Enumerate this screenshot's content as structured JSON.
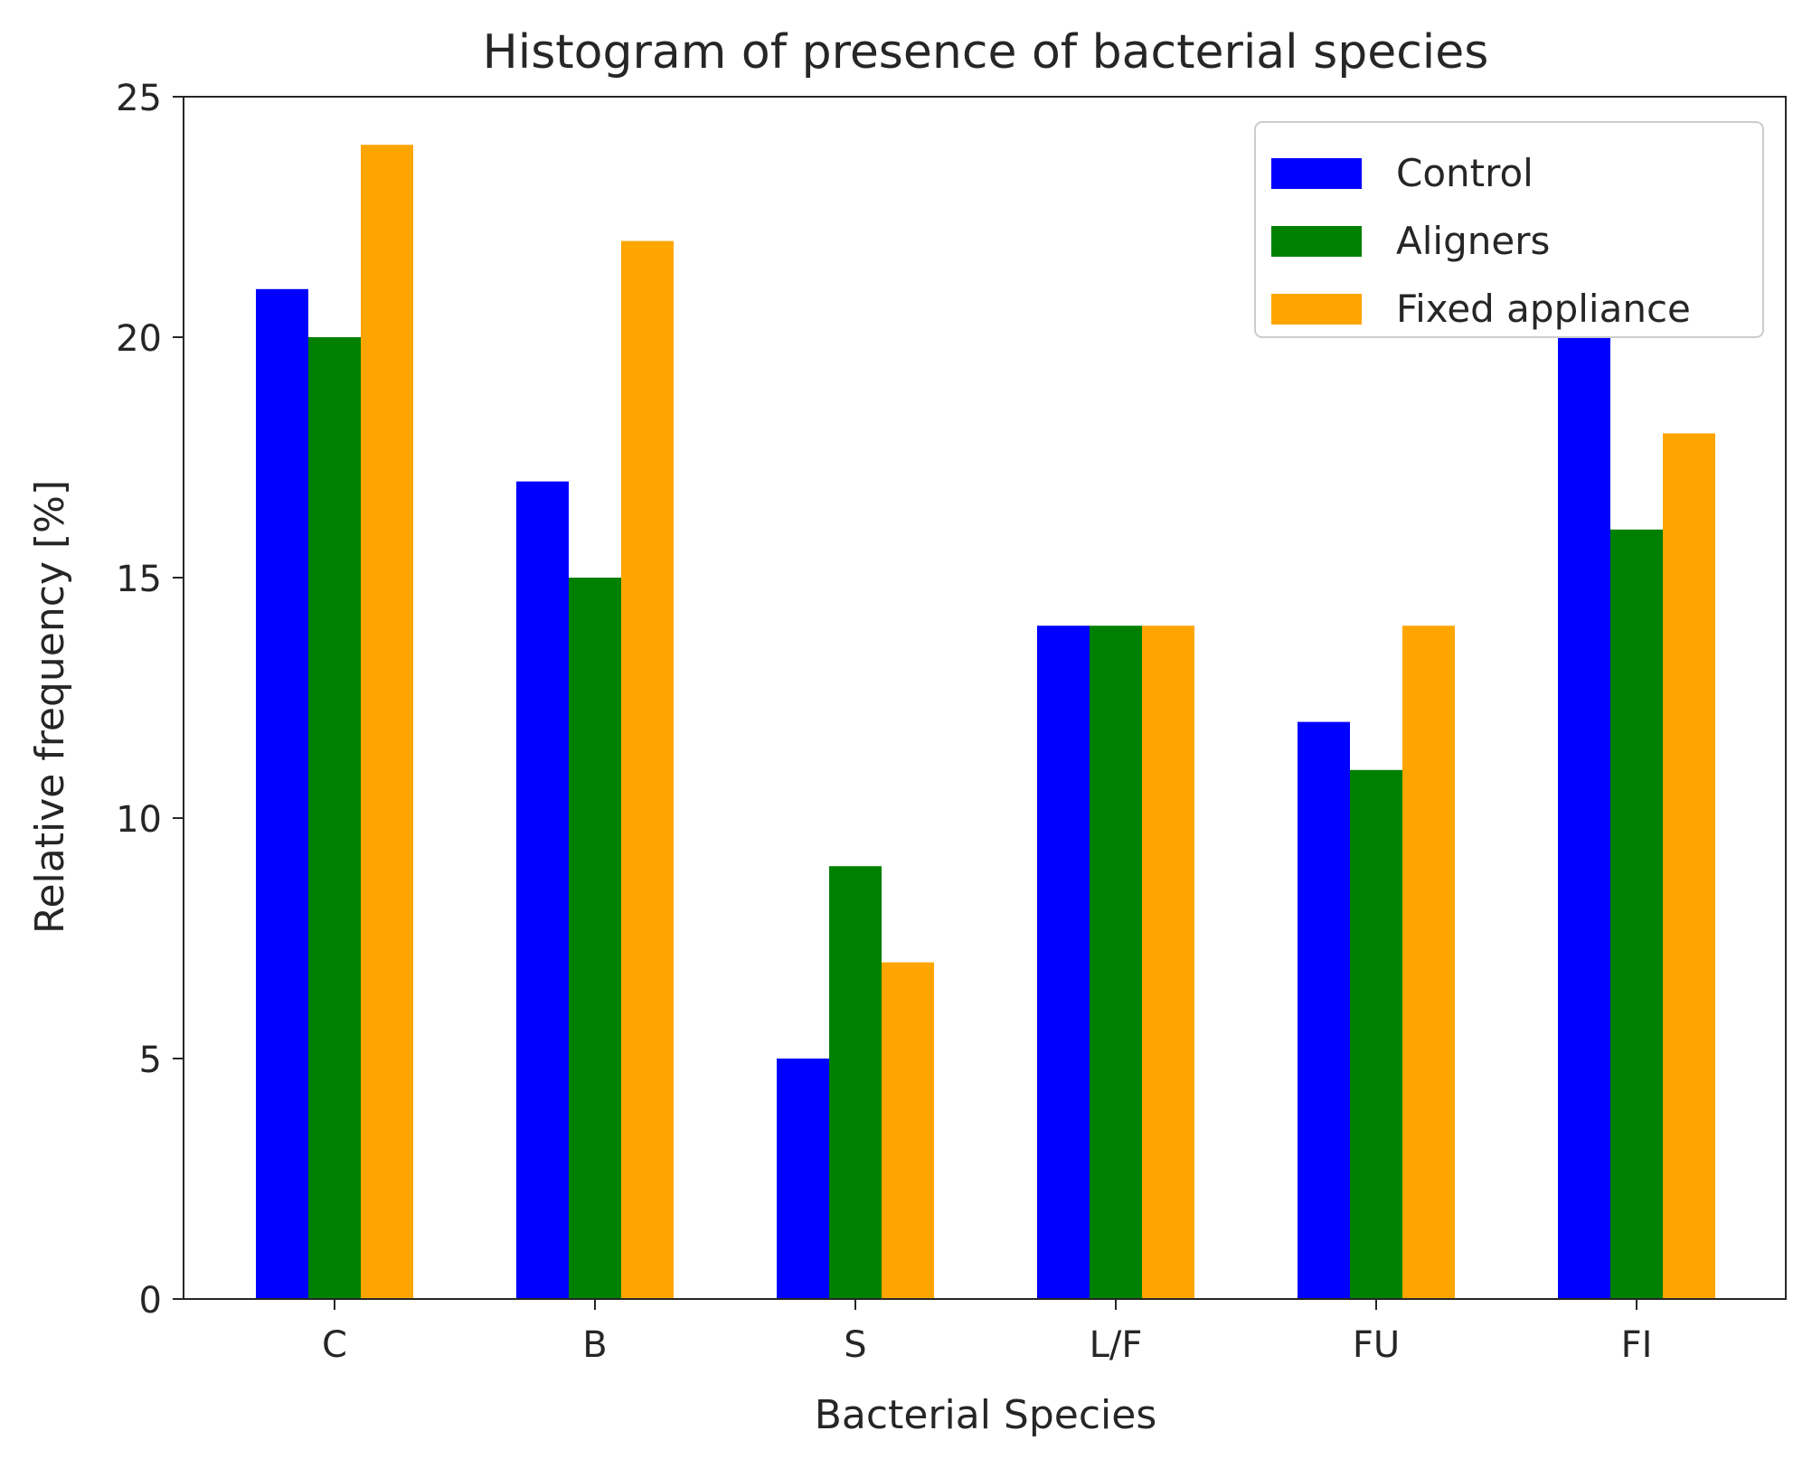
{
  "chart_data": {
    "type": "bar",
    "title": "Histogram of presence of bacterial species",
    "xlabel": "Bacterial Species",
    "ylabel": "Relative frequency [%]",
    "categories": [
      "C",
      "B",
      "S",
      "L/F",
      "FU",
      "FI"
    ],
    "series": [
      {
        "name": "Control",
        "color": "#0000ff",
        "values": [
          21,
          17,
          5,
          14,
          12,
          20
        ]
      },
      {
        "name": "Aligners",
        "color": "#008000",
        "values": [
          20,
          15,
          9,
          14,
          11,
          16
        ]
      },
      {
        "name": "Fixed appliance",
        "color": "#ffa500",
        "values": [
          24,
          22,
          7,
          14,
          14,
          18
        ]
      }
    ],
    "ylim": [
      0,
      25
    ],
    "yticks": [
      0,
      5,
      10,
      15,
      20,
      25
    ],
    "ytick_labels": [
      "0",
      "5",
      "10",
      "15",
      "20",
      "25"
    ],
    "grid": false,
    "legend_position": "top-right"
  }
}
